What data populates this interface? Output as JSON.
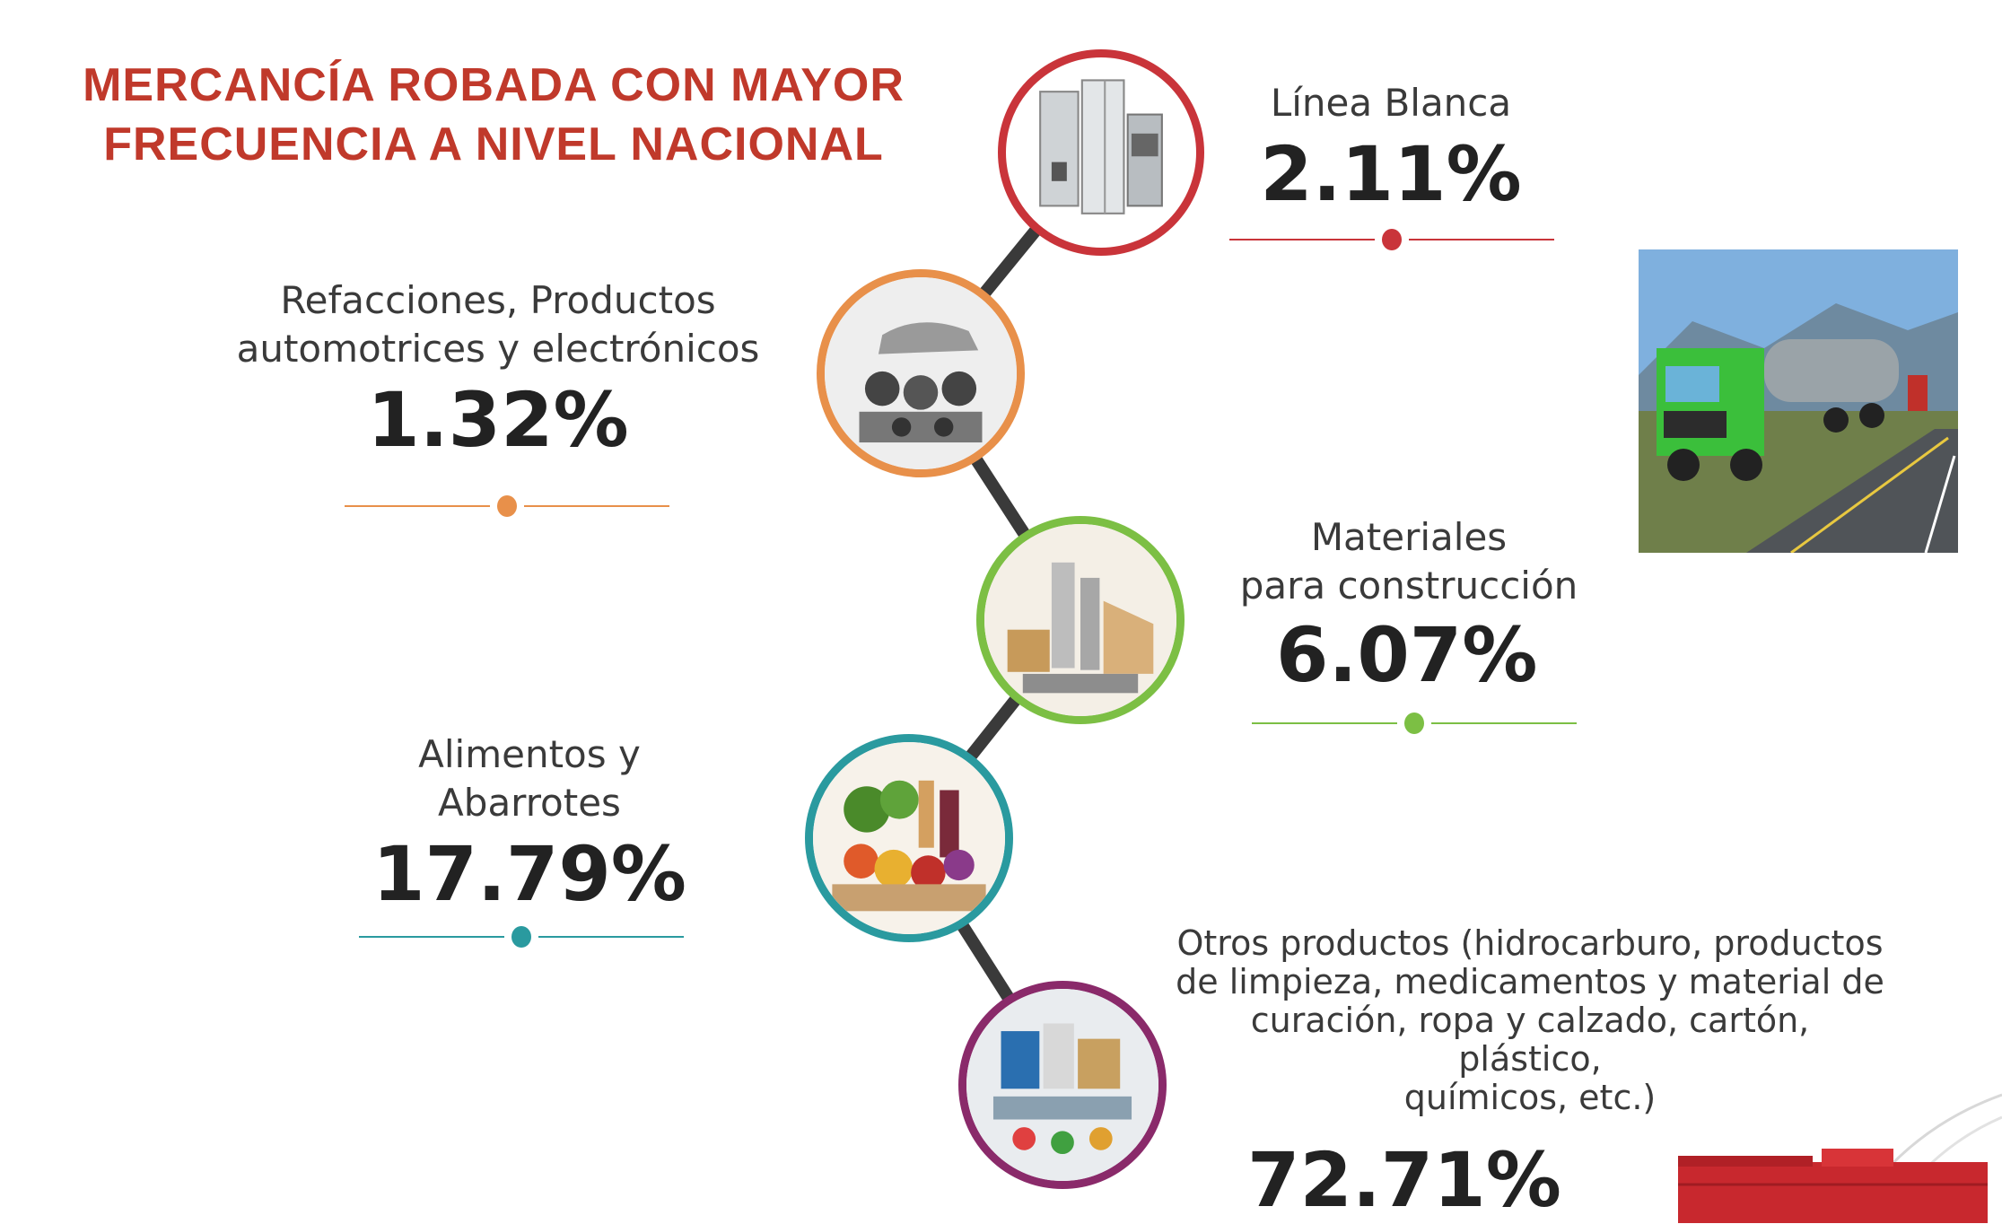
{
  "title": {
    "line1": "MERCANCÍA ROBADA CON MAYOR",
    "line2": "FRECUENCIA A NIVEL NACIONAL"
  },
  "items": [
    {
      "label": "Línea Blanca",
      "percent": "2.11%",
      "color": "#c9343a",
      "icon": "appliances-icon"
    },
    {
      "label_line1": "Refacciones, Productos",
      "label_line2": "automotrices y electrónicos",
      "percent": "1.32%",
      "color": "#e8904a",
      "icon": "auto-parts-icon"
    },
    {
      "label_line1": "Materiales",
      "label_line2": "para construcción",
      "percent": "6.07%",
      "color": "#7cbf44",
      "icon": "construction-materials-icon"
    },
    {
      "label_line1": "Alimentos y",
      "label_line2": "Abarrotes",
      "percent": "17.79%",
      "color": "#2a9a9f",
      "icon": "groceries-icon"
    },
    {
      "label_line1": "Otros productos (hidrocarburo, productos",
      "label_line2": "de limpieza, medicamentos y material de",
      "label_line3": "curación, ropa y calzado, cartón, plástico,",
      "label_line4": "químicos, etc.)",
      "percent": "72.71%",
      "color": "#8a2a6a",
      "icon": "other-products-icon"
    }
  ],
  "connector_color": "#3a3a3a"
}
